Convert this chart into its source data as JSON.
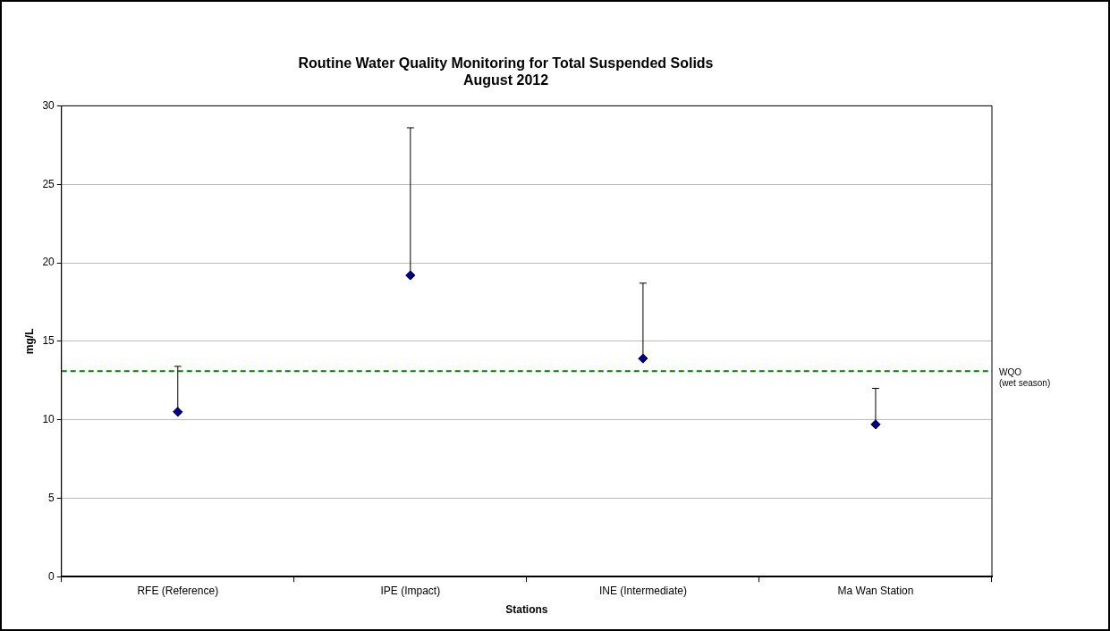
{
  "chart_data": {
    "type": "scatter",
    "title": "Routine Water Quality Monitoring for Total Suspended Solids",
    "subtitle": "August 2012",
    "xlabel": "Stations",
    "ylabel": "mg/L",
    "categories": [
      "RFE (Reference)",
      "IPE (Impact)",
      "INE (Intermediate)",
      "Ma Wan Station"
    ],
    "series": [
      {
        "color": "#000080",
        "values": [
          10.5,
          19.2,
          13.9,
          9.7
        ],
        "errors": [
          [
            10.5,
            13.4
          ],
          [
            19.2,
            28.6
          ],
          [
            13.9,
            18.7
          ],
          [
            9.7,
            12.0
          ]
        ]
      }
    ],
    "ylim": [
      0,
      30
    ],
    "yticks": [
      0,
      5,
      10,
      15,
      20,
      25,
      30
    ],
    "grid": "y",
    "legend": false,
    "marker": "diamond",
    "ref_lines": [
      {
        "axis": "y",
        "value": 13.1,
        "label": "WQO (wet season)",
        "color": "#008000",
        "line_style": "dashed"
      }
    ]
  }
}
